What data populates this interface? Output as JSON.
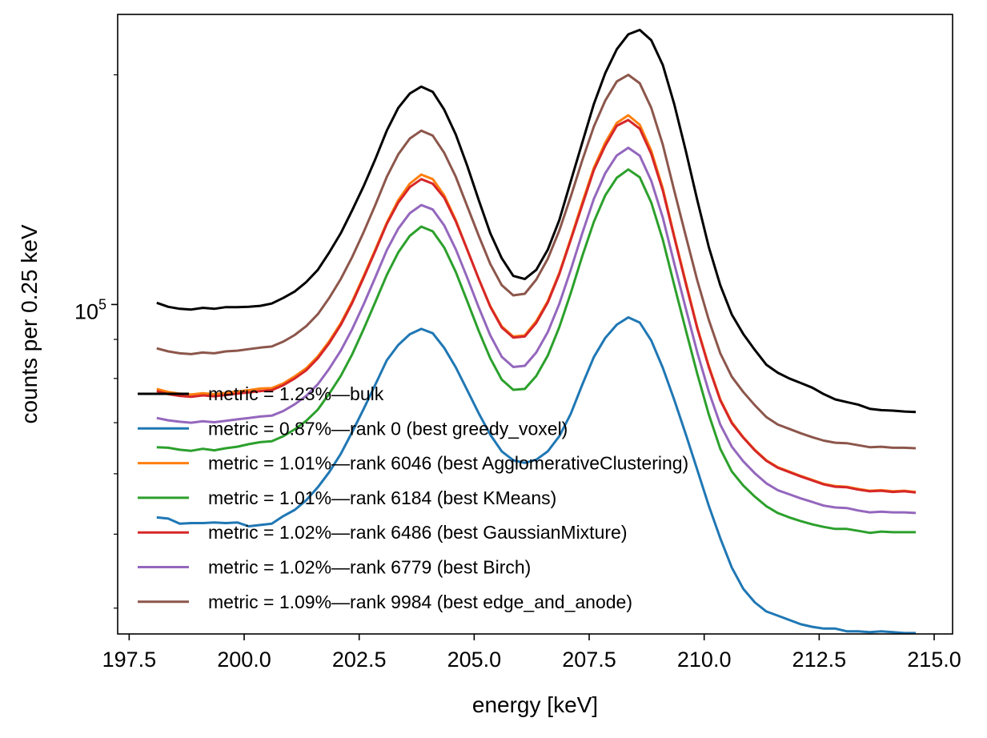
{
  "chart_data": {
    "type": "line",
    "title": "",
    "xlabel": "energy [keV]",
    "ylabel": "counts per 0.25 keV",
    "xlim": [
      197.25,
      215.4
    ],
    "ylim": [
      37000,
      240000
    ],
    "yscale": "log",
    "grid": false,
    "legend_position": "lower-left",
    "x_ticks": [
      197.5,
      200.0,
      202.5,
      205.0,
      207.5,
      210.0,
      212.5,
      215.0
    ],
    "x_tick_labels": [
      "197.5",
      "200.0",
      "202.5",
      "205.0",
      "207.5",
      "210.0",
      "212.5",
      "215.0"
    ],
    "y_major_ticks": [
      100000
    ],
    "y_major_base": "10",
    "y_major_exp": "5",
    "y_minor_ticks": [
      40000,
      50000,
      60000,
      70000,
      80000,
      90000,
      200000
    ],
    "x": [
      198.1,
      198.35,
      198.6,
      198.85,
      199.1,
      199.35,
      199.6,
      199.85,
      200.1,
      200.35,
      200.6,
      200.85,
      201.1,
      201.35,
      201.6,
      201.85,
      202.1,
      202.35,
      202.6,
      202.85,
      203.1,
      203.35,
      203.6,
      203.85,
      204.1,
      204.35,
      204.6,
      204.85,
      205.1,
      205.35,
      205.6,
      205.85,
      206.1,
      206.35,
      206.6,
      206.85,
      207.1,
      207.35,
      207.6,
      207.85,
      208.1,
      208.35,
      208.6,
      208.85,
      209.1,
      209.35,
      209.6,
      209.85,
      210.1,
      210.35,
      210.6,
      210.85,
      211.1,
      211.35,
      211.6,
      211.85,
      212.1,
      212.35,
      212.6,
      212.85,
      213.1,
      213.35,
      213.6,
      213.85,
      214.1,
      214.35,
      214.6
    ],
    "series": [
      {
        "name": "metric = 1.23%—bulk",
        "color": "#000000",
        "values": [
          100500,
          99300,
          98700,
          98500,
          99000,
          98700,
          99200,
          99200,
          99300,
          99600,
          100300,
          102000,
          104000,
          107000,
          111000,
          117000,
          124000,
          133000,
          143000,
          155000,
          169000,
          181000,
          189000,
          193000,
          190000,
          180000,
          167000,
          152000,
          137000,
          124000,
          115000,
          109000,
          108000,
          111000,
          118000,
          129000,
          145000,
          163000,
          183000,
          201000,
          216000,
          226000,
          229000,
          222000,
          206000,
          183000,
          159000,
          137000,
          119000,
          106000,
          97000,
          91500,
          87200,
          83400,
          81400,
          80000,
          78900,
          77800,
          76300,
          75100,
          74500,
          73900,
          73000,
          72700,
          72600,
          72400,
          72300
        ]
      },
      {
        "name": "metric = 0.87%—rank 0 (best greedy_voxel)",
        "color": "#1f77b4",
        "values": [
          52600,
          52400,
          51600,
          51700,
          51700,
          51800,
          51700,
          51800,
          51200,
          51400,
          51600,
          52800,
          53800,
          55400,
          57600,
          60300,
          63700,
          68100,
          73000,
          78500,
          84500,
          88500,
          91400,
          92900,
          91700,
          87700,
          82700,
          77200,
          72000,
          67500,
          64200,
          62500,
          62000,
          62600,
          64200,
          67200,
          71900,
          78500,
          85300,
          90400,
          94100,
          96200,
          94700,
          89700,
          82600,
          75000,
          67600,
          60700,
          54500,
          49400,
          45200,
          42400,
          40700,
          39600,
          39100,
          38600,
          38100,
          37800,
          37600,
          37600,
          37300,
          37300,
          37200,
          37300,
          37200,
          37100,
          37100
        ]
      },
      {
        "name": "metric = 1.01%—rank 6046 (best AgglomerativeClustering)",
        "color": "#ff7f0e",
        "values": [
          77500,
          76800,
          76400,
          76200,
          76500,
          76300,
          76600,
          76900,
          77200,
          77600,
          77700,
          78800,
          80500,
          82500,
          85500,
          89500,
          94500,
          101000,
          109000,
          118000,
          128000,
          137000,
          144000,
          148000,
          146000,
          139000,
          129000,
          118000,
          108000,
          99500,
          93600,
          90800,
          91100,
          95100,
          101000,
          110000,
          122000,
          136000,
          151000,
          163000,
          173000,
          177000,
          172000,
          159000,
          142000,
          123000,
          107000,
          93300,
          83100,
          75100,
          70100,
          67000,
          64500,
          62500,
          61200,
          60400,
          59600,
          58900,
          58200,
          57800,
          57700,
          57300,
          57000,
          57100,
          56900,
          57000,
          56800
        ]
      },
      {
        "name": "metric = 1.01%—rank 6184 (best KMeans)",
        "color": "#2ca02c",
        "values": [
          65000,
          64900,
          64500,
          64300,
          64700,
          64400,
          64800,
          65100,
          65600,
          66000,
          66200,
          67200,
          68600,
          70400,
          72800,
          76400,
          80600,
          86100,
          92900,
          100700,
          109300,
          117000,
          123000,
          126500,
          124700,
          118700,
          110300,
          101000,
          92300,
          85000,
          79700,
          77300,
          77500,
          80600,
          85700,
          93400,
          103500,
          115700,
          128300,
          139000,
          146600,
          150300,
          146800,
          136000,
          121600,
          106000,
          92600,
          81100,
          71800,
          64700,
          60400,
          57900,
          56000,
          54400,
          53300,
          52600,
          52000,
          51500,
          51100,
          50800,
          50800,
          50500,
          50200,
          50400,
          50300,
          50300,
          50300
        ]
      },
      {
        "name": "metric = 1.02%—rank 6486 (best GaussianMixture)",
        "color": "#d62728",
        "values": [
          77000,
          76300,
          75900,
          75700,
          76000,
          75800,
          76100,
          76400,
          76700,
          77000,
          77200,
          78400,
          80000,
          82000,
          85000,
          89000,
          94000,
          100500,
          108500,
          117500,
          127500,
          136000,
          142500,
          146000,
          144000,
          138000,
          128500,
          118000,
          108000,
          99300,
          93300,
          90500,
          90800,
          94600,
          100600,
          109600,
          121500,
          135000,
          150000,
          161500,
          171500,
          174500,
          170000,
          157500,
          141000,
          122500,
          106500,
          93000,
          82800,
          74900,
          69900,
          66900,
          64400,
          62400,
          61100,
          60300,
          59500,
          58800,
          58100,
          57700,
          57600,
          57200,
          56900,
          57000,
          56800,
          56900,
          56700
        ]
      },
      {
        "name": "metric = 1.02%—rank 6779 (best Birch)",
        "color": "#9467bd",
        "values": [
          71000,
          70500,
          70200,
          70000,
          70300,
          70100,
          70400,
          70700,
          71000,
          71300,
          71500,
          72500,
          74000,
          75900,
          78600,
          82400,
          87000,
          92900,
          100100,
          108500,
          117800,
          125700,
          131700,
          135000,
          133200,
          126900,
          118100,
          108400,
          99100,
          91100,
          85400,
          82800,
          83100,
          86500,
          92000,
          100200,
          111000,
          124000,
          137500,
          148600,
          156800,
          160500,
          156700,
          145200,
          130000,
          113200,
          98800,
          86500,
          76900,
          69600,
          65100,
          62300,
          60100,
          58300,
          57100,
          56400,
          55700,
          55100,
          54500,
          54200,
          54100,
          53700,
          53400,
          53500,
          53400,
          53400,
          53300
        ]
      },
      {
        "name": "metric = 1.09%—rank 9984 (best edge_and_anode)",
        "color": "#8c564b",
        "values": [
          87600,
          86800,
          86300,
          86100,
          86500,
          86300,
          86800,
          87000,
          87400,
          87800,
          88100,
          89400,
          91200,
          93700,
          97100,
          102000,
          108000,
          115500,
          124500,
          135000,
          147000,
          157300,
          165000,
          169000,
          166500,
          158000,
          147000,
          134500,
          123000,
          113000,
          106000,
          102800,
          103300,
          107800,
          114800,
          125000,
          138500,
          154500,
          171000,
          185000,
          196000,
          200000,
          195000,
          181000,
          162000,
          141000,
          123000,
          107500,
          95500,
          86300,
          80400,
          76800,
          73800,
          71200,
          69600,
          68700,
          67800,
          67000,
          66300,
          65900,
          65800,
          65400,
          65000,
          65100,
          64900,
          64900,
          64800
        ]
      }
    ]
  }
}
